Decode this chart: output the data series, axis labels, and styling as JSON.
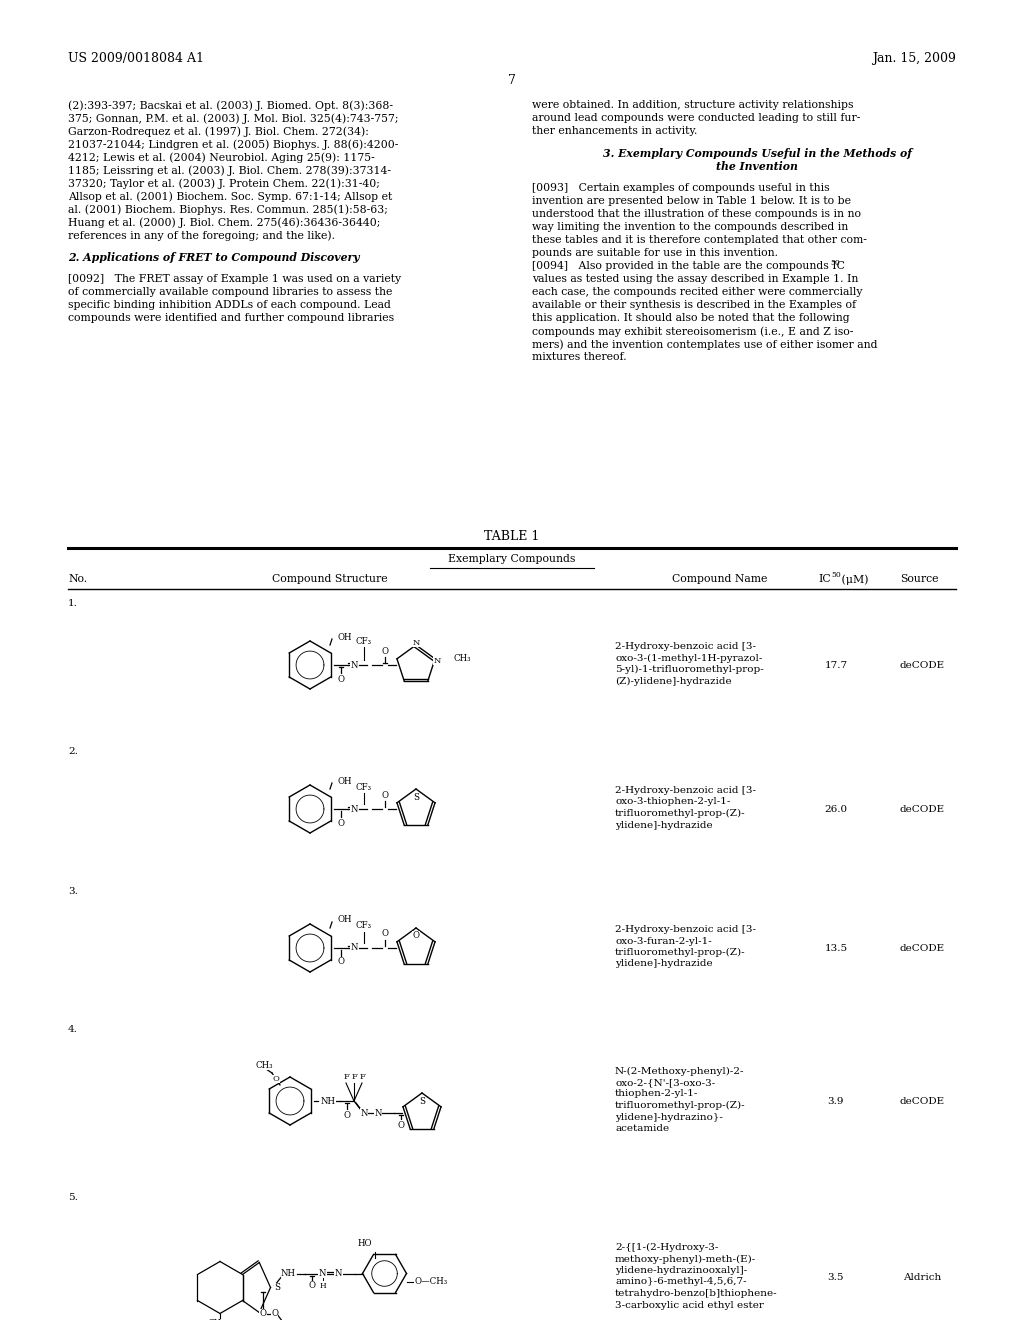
{
  "bg": "#ffffff",
  "header_left": "US 2009/0018084 A1",
  "header_right": "Jan. 15, 2009",
  "page_num": "7",
  "left_col": [
    "(2):393-397; Bacskai et al. (2003) J. Biomed. Opt. 8(3):368-",
    "375; Gonnan, P.M. et al. (2003) J. Mol. Biol. 325(4):743-757;",
    "Garzon-Rodrequez et al. (1997) J. Biol. Chem. 272(34):",
    "21037-21044; Lindgren et al. (2005) Biophys. J. 88(6):4200-",
    "4212; Lewis et al. (2004) Neurobiol. Aging 25(9): 1175-",
    "1185; Leissring et al. (2003) J. Biol. Chem. 278(39):37314-",
    "37320; Taylor et al. (2003) J. Protein Chem. 22(1):31-40;",
    "Allsop et al. (2001) Biochem. Soc. Symp. 67:1-14; Allsop et",
    "al. (2001) Biochem. Biophys. Res. Commun. 285(1):58-63;",
    "Huang et al. (2000) J. Biol. Chem. 275(46):36436-36440;",
    "references in any of the foregoing; and the like).",
    "",
    "2. Applications of FRET to Compound Discovery",
    "",
    "[0092]   The FRET assay of Example 1 was used on a variety",
    "of commercially available compound libraries to assess the",
    "specific binding inhibition ADDLs of each compound. Lead",
    "compounds were identified and further compound libraries"
  ],
  "right_col": [
    "were obtained. In addition, structure activity relationships",
    "around lead compounds were conducted leading to still fur-",
    "ther enhancements in activity.",
    "",
    "3. Exemplary Compounds Useful in the Methods of",
    "the Invention",
    "",
    "[0093]   Certain examples of compounds useful in this",
    "invention are presented below in Table 1 below. It is to be",
    "understood that the illustration of these compounds is in no",
    "way limiting the invention to the compounds described in",
    "these tables and it is therefore contemplated that other com-",
    "pounds are suitable for use in this invention.",
    "[0094]   Also provided in the table are the compounds IC",
    "values as tested using the assay described in Example 1. In",
    "each case, the compounds recited either were commercially",
    "available or their synthesis is described in the Examples of",
    "this application. It should also be noted that the following",
    "compounds may exhibit stereoisomerism (i.e., E and Z iso-",
    "mers) and the invention contemplates use of either isomer and",
    "mixtures thereof."
  ],
  "table_title": "TABLE 1",
  "table_subtitle": "Exemplary Compounds",
  "col_no": "No.",
  "col_struct": "Compound Structure",
  "col_name": "Compound Name",
  "col_ic50": "IC",
  "col_ic50_sub": "50",
  "col_ic50_unit": " (μM)",
  "col_source": "Source",
  "rows": [
    {
      "no": "1.",
      "name": "2-Hydroxy-benzoic acid [3-\noxo-3-(1-methyl-1H-pyrazol-\n5-yl)-1-trifluoromethyl-prop-\n(Z)-ylidene]-hydrazide",
      "ic50": "17.7",
      "source": "deCODE"
    },
    {
      "no": "2.",
      "name": "2-Hydroxy-benzoic acid [3-\noxo-3-thiophen-2-yl-1-\ntrifluoromethyl-prop-(Z)-\nylidene]-hydrazide",
      "ic50": "26.0",
      "source": "deCODE"
    },
    {
      "no": "3.",
      "name": "2-Hydroxy-benzoic acid [3-\noxo-3-furan-2-yl-1-\ntrifluoromethyl-prop-(Z)-\nylidene]-hydrazide",
      "ic50": "13.5",
      "source": "deCODE"
    },
    {
      "no": "4.",
      "name": "N-(2-Methoxy-phenyl)-2-\noxo-2-{N'-[3-oxo-3-\nthiophen-2-yl-1-\ntrifluoromethyl-prop-(Z)-\nylidene]-hydrazino}-\nacetamide",
      "ic50": "3.9",
      "source": "deCODE"
    },
    {
      "no": "5.",
      "name": "2-{[1-(2-Hydroxy-3-\nmethoxy-phenyl)-meth-(E)-\nylidene-hydrazinooxalyl]-\namino}-6-methyl-4,5,6,7-\ntetrahydro-benzo[b]thiophene-\n3-carboxylic acid ethyl ester",
      "ic50": "3.5",
      "source": "Aldrich"
    }
  ]
}
